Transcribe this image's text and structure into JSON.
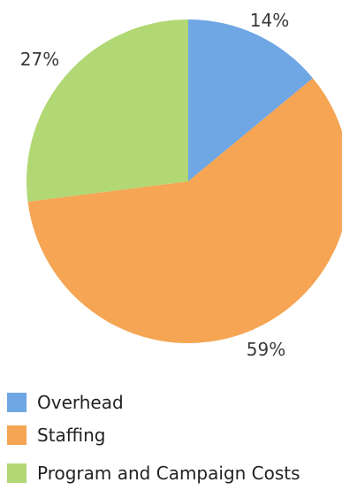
{
  "chart_data": {
    "type": "pie",
    "categories": [
      "Overhead",
      "Staffing",
      "Program and Campaign Costs"
    ],
    "values": [
      14,
      59,
      27
    ],
    "labels": [
      "14%",
      "59%",
      "27%"
    ],
    "colors": [
      "#6fa6e4",
      "#f5a553",
      "#b1d874"
    ],
    "title": "",
    "legend_position": "bottom-left"
  },
  "legend": {
    "items": [
      {
        "label": "Overhead",
        "color": "#6fa6e4"
      },
      {
        "label": "Staffing",
        "color": "#f5a553"
      },
      {
        "label": "Program and Campaign Costs",
        "color": "#b1d874"
      }
    ]
  }
}
